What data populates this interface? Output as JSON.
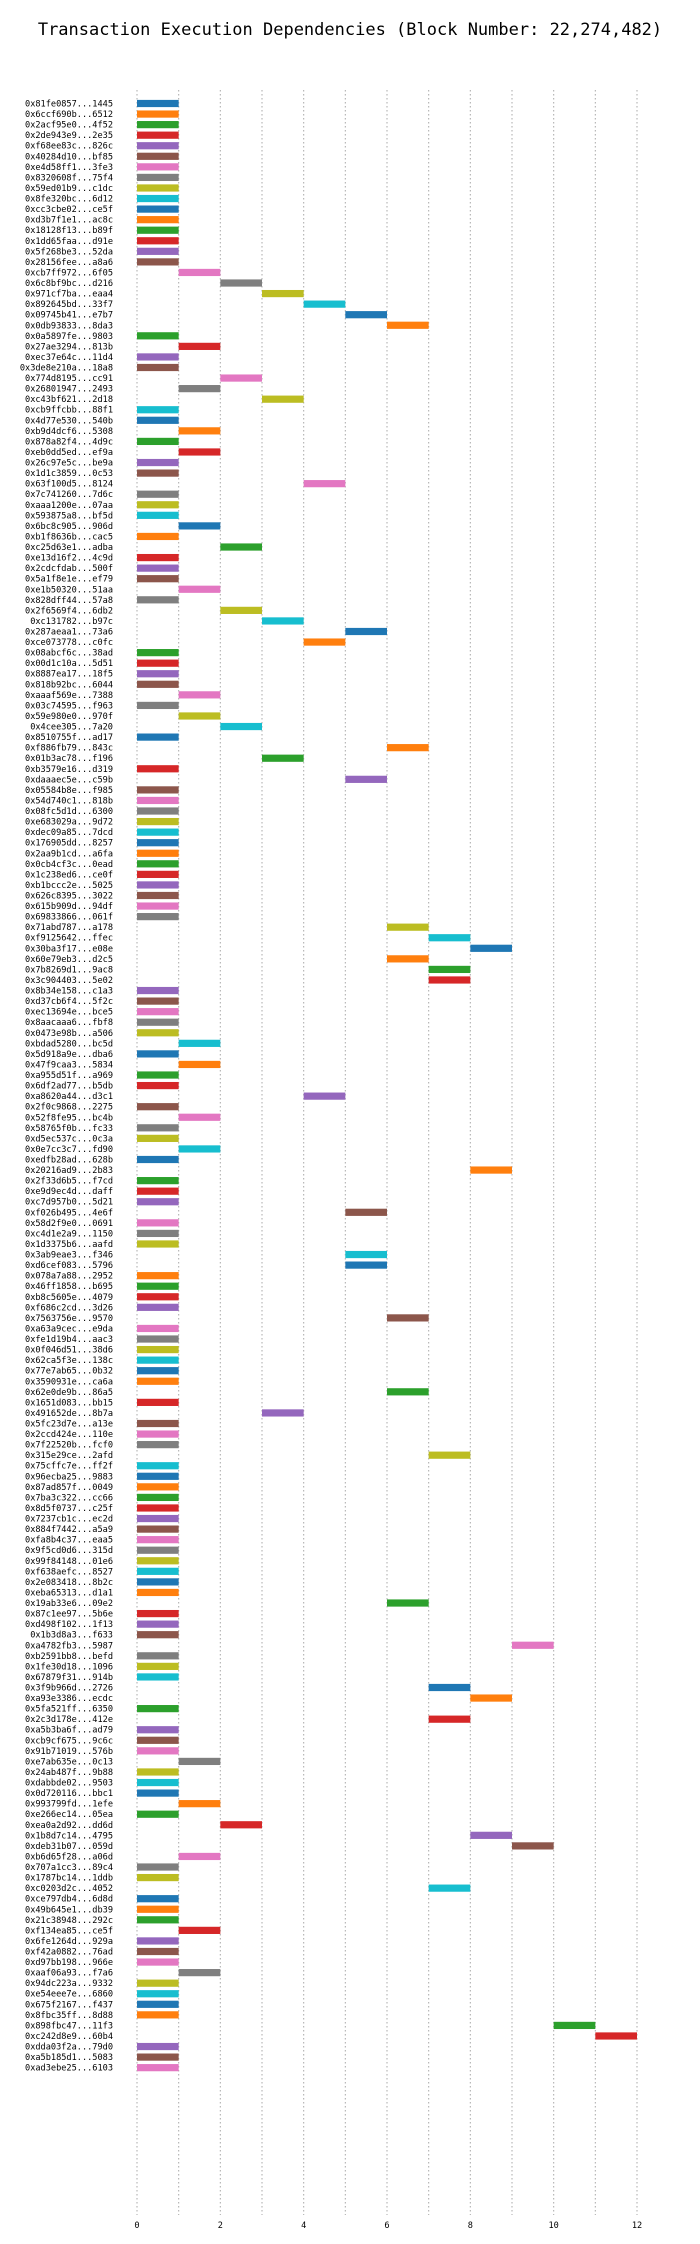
{
  "chart_data": {
    "type": "bar",
    "orientation": "horizontal",
    "subtype": "gantt",
    "title": "Transaction Execution Dependencies (Block Number: 22,274,482)",
    "xlabel": "",
    "ylabel": "",
    "xlim": [
      -0.6,
      12.6
    ],
    "xticks": [
      0,
      2,
      4,
      6,
      8,
      10,
      12
    ],
    "grid": "vertical-dotted",
    "legend": "none",
    "colors": [
      "#1f77b4",
      "#ff7f0e",
      "#2ca02c",
      "#d62728",
      "#9467bd",
      "#8c564b",
      "#e377c2",
      "#7f7f7f",
      "#bcbd22",
      "#17becf"
    ],
    "transactions": [
      {
        "label": "0x81fe0857...1445",
        "start": 0,
        "end": 1
      },
      {
        "label": "0x6ccf690b...6512",
        "start": 0,
        "end": 1
      },
      {
        "label": "0x2acf95e0...4f52",
        "start": 0,
        "end": 1
      },
      {
        "label": "0x2de943e9...2e35",
        "start": 0,
        "end": 1
      },
      {
        "label": "0xf68ee83c...826c",
        "start": 0,
        "end": 1
      },
      {
        "label": "0x40284d10...bf85",
        "start": 0,
        "end": 1
      },
      {
        "label": "0xe4d58ff1...3fe3",
        "start": 0,
        "end": 1
      },
      {
        "label": "0x8320608f...75f4",
        "start": 0,
        "end": 1
      },
      {
        "label": "0x59ed01b9...c1dc",
        "start": 0,
        "end": 1
      },
      {
        "label": "0x8fe320bc...6d12",
        "start": 0,
        "end": 1
      },
      {
        "label": "0xcc3cbe02...ce5f",
        "start": 0,
        "end": 1
      },
      {
        "label": "0xd3b7f1e1...ac8c",
        "start": 0,
        "end": 1
      },
      {
        "label": "0x18128f13...b89f",
        "start": 0,
        "end": 1
      },
      {
        "label": "0x1dd65faa...d91e",
        "start": 0,
        "end": 1
      },
      {
        "label": "0x5f268be3...52da",
        "start": 0,
        "end": 1
      },
      {
        "label": "0x28156fee...a8a6",
        "start": 0,
        "end": 1
      },
      {
        "label": "0xcb7ff972...6f05",
        "start": 1,
        "end": 2
      },
      {
        "label": "0x6c8bf9bc...d216",
        "start": 2,
        "end": 3
      },
      {
        "label": "0x971cf7ba...eaa4",
        "start": 3,
        "end": 4
      },
      {
        "label": "0x892645bd...33f7",
        "start": 4,
        "end": 5
      },
      {
        "label": "0x09745b41...e7b7",
        "start": 5,
        "end": 6
      },
      {
        "label": "0x0db93833...8da3",
        "start": 6,
        "end": 7
      },
      {
        "label": "0x0a5897fe...9803",
        "start": 0,
        "end": 1
      },
      {
        "label": "0x27ae3294...813b",
        "start": 1,
        "end": 2
      },
      {
        "label": "0xec37e64c...11d4",
        "start": 0,
        "end": 1
      },
      {
        "label": "0x3de8e210a...18a8",
        "start": 0,
        "end": 1
      },
      {
        "label": "0x774d8195...cc91",
        "start": 2,
        "end": 3
      },
      {
        "label": "0x26801947...2493",
        "start": 1,
        "end": 2
      },
      {
        "label": "0xc43bf621...2d18",
        "start": 3,
        "end": 4
      },
      {
        "label": "0xcb9ffcbb...88f1",
        "start": 0,
        "end": 1
      },
      {
        "label": "0x4d77e530...540b",
        "start": 0,
        "end": 1
      },
      {
        "label": "0xb9d4dcf6...5308",
        "start": 1,
        "end": 2
      },
      {
        "label": "0x878a82f4...4d9c",
        "start": 0,
        "end": 1
      },
      {
        "label": "0xeb0dd5ed...ef9a",
        "start": 1,
        "end": 2
      },
      {
        "label": "0x26c97e5c...be9a",
        "start": 0,
        "end": 1
      },
      {
        "label": "0x1d1c3859...0c53",
        "start": 0,
        "end": 1
      },
      {
        "label": "0x63f100d5...8124",
        "start": 4,
        "end": 5
      },
      {
        "label": "0x7c741260...7d6c",
        "start": 0,
        "end": 1
      },
      {
        "label": "0xaaa1200e...07aa",
        "start": 0,
        "end": 1
      },
      {
        "label": "0x593875a8...bf5d",
        "start": 0,
        "end": 1
      },
      {
        "label": "0x6bc8c905...906d",
        "start": 1,
        "end": 2
      },
      {
        "label": "0xb1f8636b...cac5",
        "start": 0,
        "end": 1
      },
      {
        "label": "0xc25d63e1...adba",
        "start": 2,
        "end": 3
      },
      {
        "label": "0xe13d16f2...4c9d",
        "start": 0,
        "end": 1
      },
      {
        "label": "0x2cdcfdab...500f",
        "start": 0,
        "end": 1
      },
      {
        "label": "0x5a1f8e1e...ef79",
        "start": 0,
        "end": 1
      },
      {
        "label": "0xe1b50320...51aa",
        "start": 1,
        "end": 2
      },
      {
        "label": "0x828dff44...57a8",
        "start": 0,
        "end": 1
      },
      {
        "label": "0x2f6569f4...6db2",
        "start": 2,
        "end": 3
      },
      {
        "label": "0xc131782...b97c",
        "start": 3,
        "end": 4
      },
      {
        "label": "0x287aeaa1...73a6",
        "start": 5,
        "end": 6
      },
      {
        "label": "0xce073778...c0fc",
        "start": 4,
        "end": 5
      },
      {
        "label": "0x08abcf6c...38ad",
        "start": 0,
        "end": 1
      },
      {
        "label": "0x00d1c10a...5d51",
        "start": 0,
        "end": 1
      },
      {
        "label": "0x8887ea17...18f5",
        "start": 0,
        "end": 1
      },
      {
        "label": "0x818b92bc...6044",
        "start": 0,
        "end": 1
      },
      {
        "label": "0xaaaf569e...7388",
        "start": 1,
        "end": 2
      },
      {
        "label": "0x03c74595...f963",
        "start": 0,
        "end": 1
      },
      {
        "label": "0x59e980e0...970f",
        "start": 1,
        "end": 2
      },
      {
        "label": "0x4cee305...7a20",
        "start": 2,
        "end": 3
      },
      {
        "label": "0x8510755f...ad17",
        "start": 0,
        "end": 1
      },
      {
        "label": "0xf886fb79...843c",
        "start": 6,
        "end": 7
      },
      {
        "label": "0x01b3ac78...f196",
        "start": 3,
        "end": 4
      },
      {
        "label": "0xb3579e16...d319",
        "start": 0,
        "end": 1
      },
      {
        "label": "0xdaaaec5e...c59b",
        "start": 5,
        "end": 6
      },
      {
        "label": "0x05584b8e...f985",
        "start": 0,
        "end": 1
      },
      {
        "label": "0x54d740c1...818b",
        "start": 0,
        "end": 1
      },
      {
        "label": "0x08fc5d1d...6300",
        "start": 0,
        "end": 1
      },
      {
        "label": "0xe683029a...9d72",
        "start": 0,
        "end": 1
      },
      {
        "label": "0xdec09a85...7dcd",
        "start": 0,
        "end": 1
      },
      {
        "label": "0x176905dd...8257",
        "start": 0,
        "end": 1
      },
      {
        "label": "0x2aa9b1cd...a6fa",
        "start": 0,
        "end": 1
      },
      {
        "label": "0x0cb4cf3c...0ead",
        "start": 0,
        "end": 1
      },
      {
        "label": "0x1c238ed6...ce0f",
        "start": 0,
        "end": 1
      },
      {
        "label": "0xb1bccc2e...5025",
        "start": 0,
        "end": 1
      },
      {
        "label": "0x626c8395...3022",
        "start": 0,
        "end": 1
      },
      {
        "label": "0x615b909d...94df",
        "start": 0,
        "end": 1
      },
      {
        "label": "0x69833866...061f",
        "start": 0,
        "end": 1
      },
      {
        "label": "0x71abd787...a178",
        "start": 6,
        "end": 7
      },
      {
        "label": "0xf9125642...ffec",
        "start": 7,
        "end": 8
      },
      {
        "label": "0x30ba3f17...e08e",
        "start": 8,
        "end": 9
      },
      {
        "label": "0x60e79eb3...d2c5",
        "start": 6,
        "end": 7
      },
      {
        "label": "0x7b8269d1...9ac8",
        "start": 7,
        "end": 8
      },
      {
        "label": "0x3c904403...5e02",
        "start": 7,
        "end": 8
      },
      {
        "label": "0x8b34e158...c1a3",
        "start": 0,
        "end": 1
      },
      {
        "label": "0xd37cb6f4...5f2c",
        "start": 0,
        "end": 1
      },
      {
        "label": "0xec13694e...bce5",
        "start": 0,
        "end": 1
      },
      {
        "label": "0x8aacaaa6...fbf8",
        "start": 0,
        "end": 1
      },
      {
        "label": "0x0473e98b...a506",
        "start": 0,
        "end": 1
      },
      {
        "label": "0xbdad5280...bc5d",
        "start": 1,
        "end": 2
      },
      {
        "label": "0x5d918a9e...dba6",
        "start": 0,
        "end": 1
      },
      {
        "label": "0x47f9caa3...5834",
        "start": 1,
        "end": 2
      },
      {
        "label": "0xa955d51f...a969",
        "start": 0,
        "end": 1
      },
      {
        "label": "0x6df2ad77...b5db",
        "start": 0,
        "end": 1
      },
      {
        "label": "0xa8620a44...d3c1",
        "start": 4,
        "end": 5
      },
      {
        "label": "0x2f0c9868...2275",
        "start": 0,
        "end": 1
      },
      {
        "label": "0x52f8fe95...bc4b",
        "start": 1,
        "end": 2
      },
      {
        "label": "0x58765f0b...fc33",
        "start": 0,
        "end": 1
      },
      {
        "label": "0xd5ec537c...0c3a",
        "start": 0,
        "end": 1
      },
      {
        "label": "0x0e7cc3c7...fd90",
        "start": 1,
        "end": 2
      },
      {
        "label": "0xedfb28ad...628b",
        "start": 0,
        "end": 1
      },
      {
        "label": "0x20216ad9...2b83",
        "start": 8,
        "end": 9
      },
      {
        "label": "0x2f33d6b5...f7cd",
        "start": 0,
        "end": 1
      },
      {
        "label": "0xe9d9ec4d...daff",
        "start": 0,
        "end": 1
      },
      {
        "label": "0xc7d957b0...5d21",
        "start": 0,
        "end": 1
      },
      {
        "label": "0xf026b495...4e6f",
        "start": 5,
        "end": 6
      },
      {
        "label": "0x58d2f9e0...0691",
        "start": 0,
        "end": 1
      },
      {
        "label": "0xc4d1e2a9...1150",
        "start": 0,
        "end": 1
      },
      {
        "label": "0x1d3375b6...aafd",
        "start": 0,
        "end": 1
      },
      {
        "label": "0x3ab9eae3...f346",
        "start": 5,
        "end": 6
      },
      {
        "label": "0xd6cef083...5796",
        "start": 5,
        "end": 6
      },
      {
        "label": "0x078a7a88...2952",
        "start": 0,
        "end": 1
      },
      {
        "label": "0x46ff1858...b695",
        "start": 0,
        "end": 1
      },
      {
        "label": "0xb8c5605e...4079",
        "start": 0,
        "end": 1
      },
      {
        "label": "0xf686c2cd...3d26",
        "start": 0,
        "end": 1
      },
      {
        "label": "0x7563756e...9570",
        "start": 6,
        "end": 7
      },
      {
        "label": "0xa63a9cec...e9da",
        "start": 0,
        "end": 1
      },
      {
        "label": "0xfe1d19b4...aac3",
        "start": 0,
        "end": 1
      },
      {
        "label": "0x0f046d51...38d6",
        "start": 0,
        "end": 1
      },
      {
        "label": "0x62ca5f3e...138c",
        "start": 0,
        "end": 1
      },
      {
        "label": "0x77e7ab65...0b32",
        "start": 0,
        "end": 1
      },
      {
        "label": "0x3590931e...ca6a",
        "start": 0,
        "end": 1
      },
      {
        "label": "0x62e0de9b...86a5",
        "start": 6,
        "end": 7
      },
      {
        "label": "0x1651d083...bb15",
        "start": 0,
        "end": 1
      },
      {
        "label": "0x491652de...8b7a",
        "start": 3,
        "end": 4
      },
      {
        "label": "0x5fc23d7e...a13e",
        "start": 0,
        "end": 1
      },
      {
        "label": "0x2ccd424e...110e",
        "start": 0,
        "end": 1
      },
      {
        "label": "0x7f22520b...fcf0",
        "start": 0,
        "end": 1
      },
      {
        "label": "0x315e29ce...2afd",
        "start": 7,
        "end": 8
      },
      {
        "label": "0x75cffc7e...ff2f",
        "start": 0,
        "end": 1
      },
      {
        "label": "0x96ecba25...9883",
        "start": 0,
        "end": 1
      },
      {
        "label": "0x87ad857f...0049",
        "start": 0,
        "end": 1
      },
      {
        "label": "0x7ba3c322...cc66",
        "start": 0,
        "end": 1
      },
      {
        "label": "0x8d5f0737...c25f",
        "start": 0,
        "end": 1
      },
      {
        "label": "0x7237cb1c...ec2d",
        "start": 0,
        "end": 1
      },
      {
        "label": "0x884f7442...a5a9",
        "start": 0,
        "end": 1
      },
      {
        "label": "0xfa8b4c37...eaa5",
        "start": 0,
        "end": 1
      },
      {
        "label": "0x9f5cd0d6...315d",
        "start": 0,
        "end": 1
      },
      {
        "label": "0x99f84148...01e6",
        "start": 0,
        "end": 1
      },
      {
        "label": "0xf638aefc...8527",
        "start": 0,
        "end": 1
      },
      {
        "label": "0x2e083418...8b2c",
        "start": 0,
        "end": 1
      },
      {
        "label": "0xeba65313...d1a1",
        "start": 0,
        "end": 1
      },
      {
        "label": "0x19ab33e6...09e2",
        "start": 6,
        "end": 7
      },
      {
        "label": "0x87c1ee97...5b6e",
        "start": 0,
        "end": 1
      },
      {
        "label": "0xd498f102...1f13",
        "start": 0,
        "end": 1
      },
      {
        "label": "0x1b3d8a3...f633",
        "start": 0,
        "end": 1
      },
      {
        "label": "0xa4782fb3...5987",
        "start": 9,
        "end": 10
      },
      {
        "label": "0xb2591bb8...befd",
        "start": 0,
        "end": 1
      },
      {
        "label": "0x1fe30d18...1096",
        "start": 0,
        "end": 1
      },
      {
        "label": "0x67879f31...914b",
        "start": 0,
        "end": 1
      },
      {
        "label": "0x3f9b966d...2726",
        "start": 7,
        "end": 8
      },
      {
        "label": "0xa93e3386...ecdc",
        "start": 8,
        "end": 9
      },
      {
        "label": "0x5fa521ff...6350",
        "start": 0,
        "end": 1
      },
      {
        "label": "0x2c3d178e...412e",
        "start": 7,
        "end": 8
      },
      {
        "label": "0xa5b3ba6f...ad79",
        "start": 0,
        "end": 1
      },
      {
        "label": "0xcb9cf675...9c6c",
        "start": 0,
        "end": 1
      },
      {
        "label": "0x91b71019...576b",
        "start": 0,
        "end": 1
      },
      {
        "label": "0xe7ab635e...0c13",
        "start": 1,
        "end": 2
      },
      {
        "label": "0x24ab487f...9b88",
        "start": 0,
        "end": 1
      },
      {
        "label": "0xdabbde02...9503",
        "start": 0,
        "end": 1
      },
      {
        "label": "0x0d720116...bbc1",
        "start": 0,
        "end": 1
      },
      {
        "label": "0x993799fd...1efe",
        "start": 1,
        "end": 2
      },
      {
        "label": "0xe266ec14...05ea",
        "start": 0,
        "end": 1
      },
      {
        "label": "0xea0a2d92...dd6d",
        "start": 2,
        "end": 3
      },
      {
        "label": "0x1b8d7c14...4795",
        "start": 8,
        "end": 9
      },
      {
        "label": "0xdeb31b07...059d",
        "start": 9,
        "end": 10
      },
      {
        "label": "0xb6d65f28...a06d",
        "start": 1,
        "end": 2
      },
      {
        "label": "0x707a1cc3...89c4",
        "start": 0,
        "end": 1
      },
      {
        "label": "0x1787bc14...1ddb",
        "start": 0,
        "end": 1
      },
      {
        "label": "0xc0203d2c...4052",
        "start": 7,
        "end": 8
      },
      {
        "label": "0xce797db4...6d8d",
        "start": 0,
        "end": 1
      },
      {
        "label": "0x49b645e1...db39",
        "start": 0,
        "end": 1
      },
      {
        "label": "0x21c38948...292c",
        "start": 0,
        "end": 1
      },
      {
        "label": "0xf134ea85...ce5f",
        "start": 1,
        "end": 2
      },
      {
        "label": "0x6fe1264d...929a",
        "start": 0,
        "end": 1
      },
      {
        "label": "0xf42a0882...76ad",
        "start": 0,
        "end": 1
      },
      {
        "label": "0xd97bb198...966e",
        "start": 0,
        "end": 1
      },
      {
        "label": "0xaaf06a93...f7a6",
        "start": 1,
        "end": 2
      },
      {
        "label": "0x94dc223a...9332",
        "start": 0,
        "end": 1
      },
      {
        "label": "0xe54eee7e...6860",
        "start": 0,
        "end": 1
      },
      {
        "label": "0x675f2167...f437",
        "start": 0,
        "end": 1
      },
      {
        "label": "0x8fbc35ff...8d88",
        "start": 0,
        "end": 1
      },
      {
        "label": "0x898fbc47...11f3",
        "start": 10,
        "end": 11
      },
      {
        "label": "0xc242d8e9...60b4",
        "start": 11,
        "end": 12
      },
      {
        "label": "0xdda03f2a...79d0",
        "start": 0,
        "end": 1
      },
      {
        "label": "0xa5b185d1...5083",
        "start": 0,
        "end": 1
      },
      {
        "label": "0xad3ebe25...6103",
        "start": 0,
        "end": 1
      }
    ]
  }
}
